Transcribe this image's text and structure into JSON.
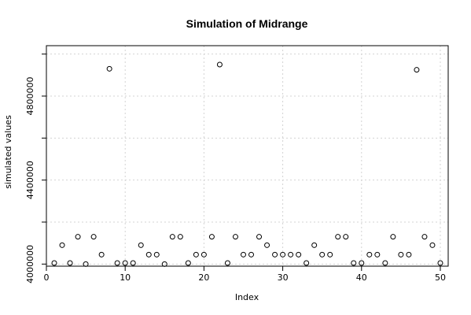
{
  "chart_data": {
    "type": "scatter",
    "title": "Simulation of Midrange",
    "xlabel": "Index",
    "ylabel": "simulated values",
    "xlim": [
      0,
      51
    ],
    "ylim": [
      3990000,
      5040000
    ],
    "x_ticks": [
      0,
      10,
      20,
      30,
      40,
      50
    ],
    "x_tick_labels": [
      "0",
      "10",
      "20",
      "30",
      "40",
      "50"
    ],
    "y_ticks": [
      4000000,
      4400000,
      4800000
    ],
    "y_tick_labels": [
      "4000000",
      "4400000",
      "4800000"
    ],
    "y_minor_ticks": [
      4000000,
      4200000,
      4400000,
      4600000,
      4800000,
      5000000
    ],
    "grid": true,
    "series": [
      {
        "x": [
          1,
          2,
          3,
          4,
          5,
          6,
          7,
          8,
          9,
          10,
          11,
          12,
          13,
          14,
          15,
          16,
          17,
          18,
          19,
          20,
          21,
          22,
          23,
          24,
          25,
          26,
          27,
          28,
          29,
          30,
          31,
          32,
          33,
          34,
          35,
          36,
          37,
          38,
          39,
          40,
          41,
          42,
          43,
          44,
          45,
          46,
          47,
          48,
          49,
          50
        ],
        "y": [
          4005000,
          4090000,
          4005000,
          4130000,
          4000000,
          4130000,
          4045000,
          4930000,
          4005000,
          4005000,
          4005000,
          4090000,
          4045000,
          4045000,
          4000000,
          4130000,
          4130000,
          4005000,
          4045000,
          4045000,
          4130000,
          4950000,
          4005000,
          4130000,
          4045000,
          4045000,
          4130000,
          4090000,
          4045000,
          4045000,
          4045000,
          4045000,
          4005000,
          4090000,
          4045000,
          4045000,
          4130000,
          4130000,
          4005000,
          4005000,
          4045000,
          4045000,
          4005000,
          4130000,
          4045000,
          4045000,
          4925000,
          4130000,
          4090000,
          4005000
        ]
      }
    ]
  }
}
